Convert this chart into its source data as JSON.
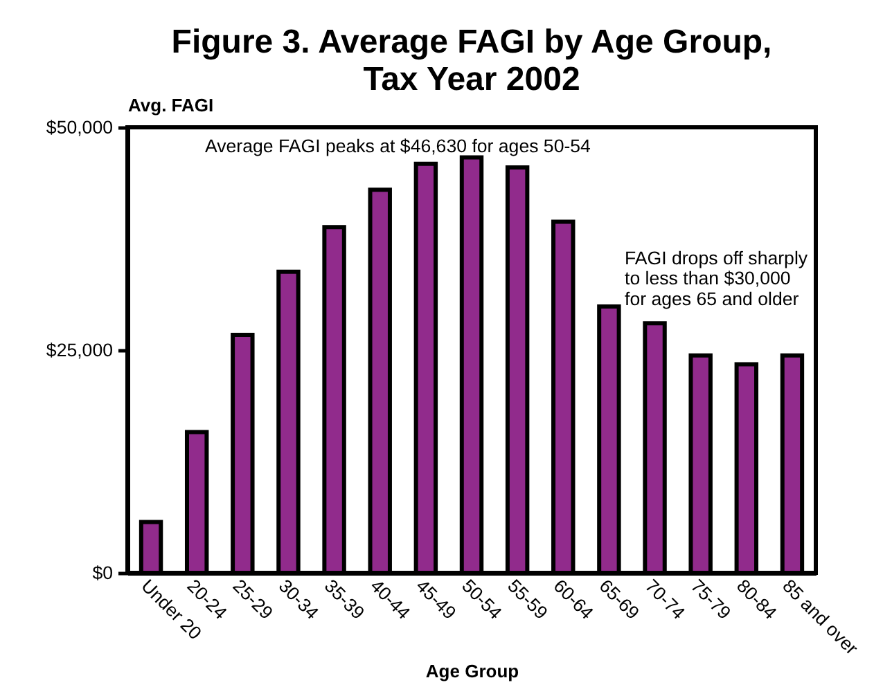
{
  "chart_data": {
    "type": "bar",
    "title": "Figure 3. Average FAGI by Age Group,\nTax Year 2002",
    "xlabel": "Age Group",
    "ylabel": "Avg. FAGI",
    "categories": [
      "Under 20",
      "20-24",
      "25-29",
      "30-34",
      "35-39",
      "40-44",
      "45-49",
      "50-54",
      "55-59",
      "60-64",
      "65-69",
      "70-74",
      "75-79",
      "80-84",
      "85 and over"
    ],
    "values": [
      5700,
      15800,
      26700,
      33800,
      38800,
      43000,
      45900,
      46630,
      45500,
      39400,
      29900,
      28000,
      24400,
      23400,
      24400
    ],
    "color": "#912b8c",
    "ylim": [
      0,
      50000
    ],
    "yticks": [
      {
        "value": 0,
        "label": "$0"
      },
      {
        "value": 25000,
        "label": "$25,000"
      },
      {
        "value": 50000,
        "label": "$50,000"
      }
    ],
    "grid": false,
    "annotations": [
      "Average FAGI peaks at $46,630 for ages 50-54",
      "FAGI drops off sharply\nto less than $30,000\nfor ages 65 and older"
    ]
  }
}
